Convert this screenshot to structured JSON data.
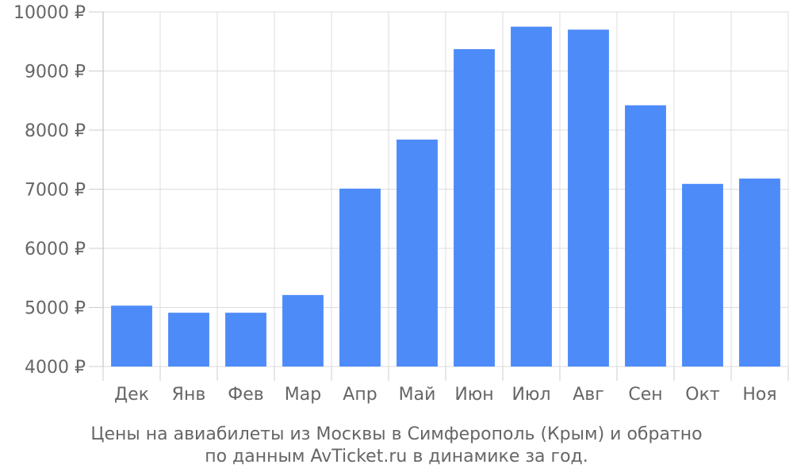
{
  "chart_data": {
    "type": "bar",
    "title": "",
    "xlabel": "",
    "ylabel": "",
    "categories": [
      "Дек",
      "Янв",
      "Фев",
      "Мар",
      "Апр",
      "Май",
      "Июн",
      "Июл",
      "Авг",
      "Сен",
      "Окт",
      "Ноя"
    ],
    "values": [
      5030,
      4910,
      4910,
      5210,
      7010,
      7840,
      9370,
      9750,
      9700,
      8420,
      7090,
      7180
    ],
    "ylim": [
      4000,
      10000
    ],
    "yticks": [
      4000,
      5000,
      6000,
      7000,
      8000,
      9000,
      10000
    ],
    "ytick_labels": [
      "4000 ₽",
      "5000 ₽",
      "6000 ₽",
      "7000 ₽",
      "8000 ₽",
      "9000 ₽",
      "10000 ₽"
    ],
    "grid": true,
    "bar_color": "#4d8bf9",
    "grid_color": "#dddddd"
  },
  "caption": {
    "line1": "Цены на авиабилеты из Москвы в Симферополь (Крым) и обратно",
    "line2": "по данным AvTicket.ru в динамике за год."
  }
}
